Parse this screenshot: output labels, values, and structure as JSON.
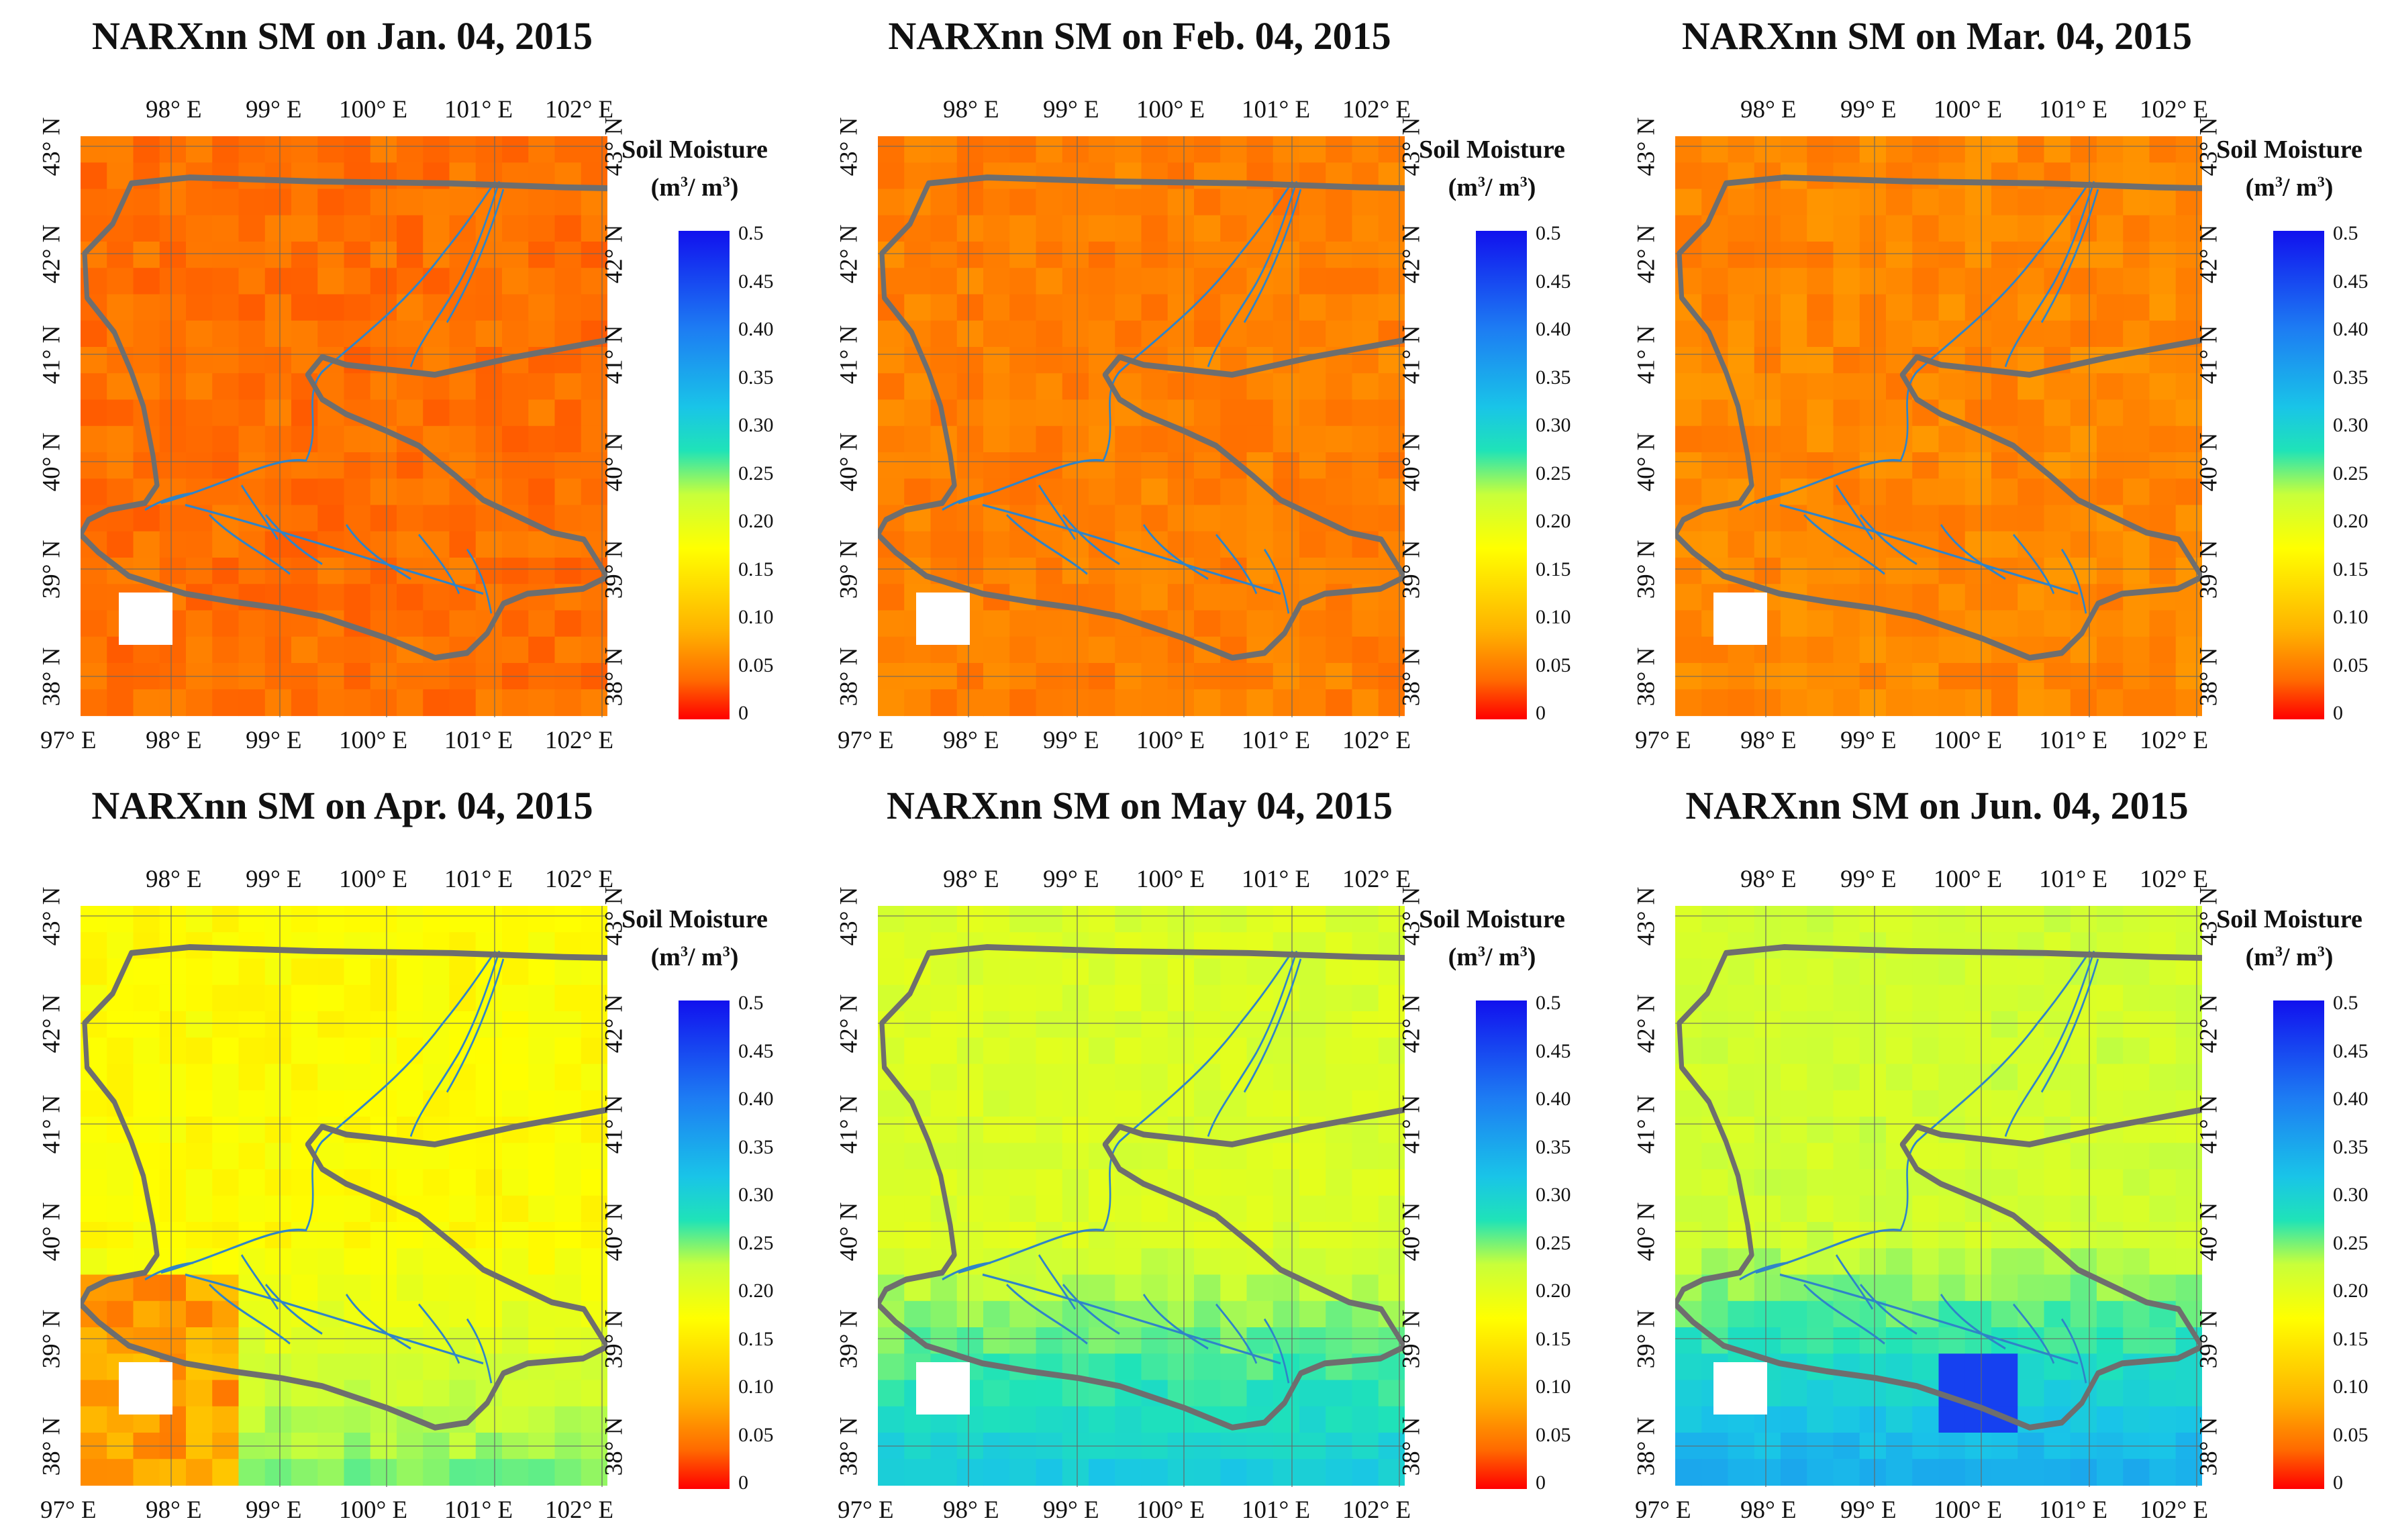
{
  "figure": {
    "colorbar": {
      "title_line1": "Soil Moisture",
      "title_line2": "(m",
      "title_sup1": "3",
      "title_mid": "/ m",
      "title_sup2": "3",
      "title_end": ")",
      "ticks": [
        "0.5",
        "0.45",
        "0.40",
        "0.35",
        "0.30",
        "0.25",
        "0.20",
        "0.15",
        "0.10",
        "0.05",
        "0"
      ],
      "range": [
        0,
        0.5
      ],
      "colors": [
        "#ff0000",
        "#ff6a00",
        "#ffb100",
        "#ffff00",
        "#c8ff3a",
        "#1fe3b8",
        "#19c4e8",
        "#1d7cf3",
        "#1111ee"
      ]
    },
    "lon_labels_top": [
      "98° E",
      "99° E",
      "100° E",
      "101° E",
      "102° E"
    ],
    "lon_labels_bottom": [
      "97° E",
      "98° E",
      "99° E",
      "100° E",
      "101° E",
      "102° E"
    ],
    "lat_labels": [
      "43° N",
      "42° N",
      "41° N",
      "40° N",
      "39° N",
      "38° N"
    ],
    "boundary_color": "#6e6e6e",
    "river_color": "#2f84c8"
  },
  "panels": [
    {
      "title": "NARXnn SM on Jan. 04, 2015",
      "mean_sm": 0.055
    },
    {
      "title": "NARXnn SM on Feb. 04, 2015",
      "mean_sm": 0.065
    },
    {
      "title": "NARXnn SM on Mar. 04, 2015",
      "mean_sm": 0.07
    },
    {
      "title": "NARXnn SM on Apr. 04, 2015",
      "mean_sm": 0.17
    },
    {
      "title": "NARXnn SM on May 04, 2015",
      "mean_sm": 0.21
    },
    {
      "title": "NARXnn SM on Jun. 04, 2015",
      "mean_sm": 0.22
    }
  ]
}
